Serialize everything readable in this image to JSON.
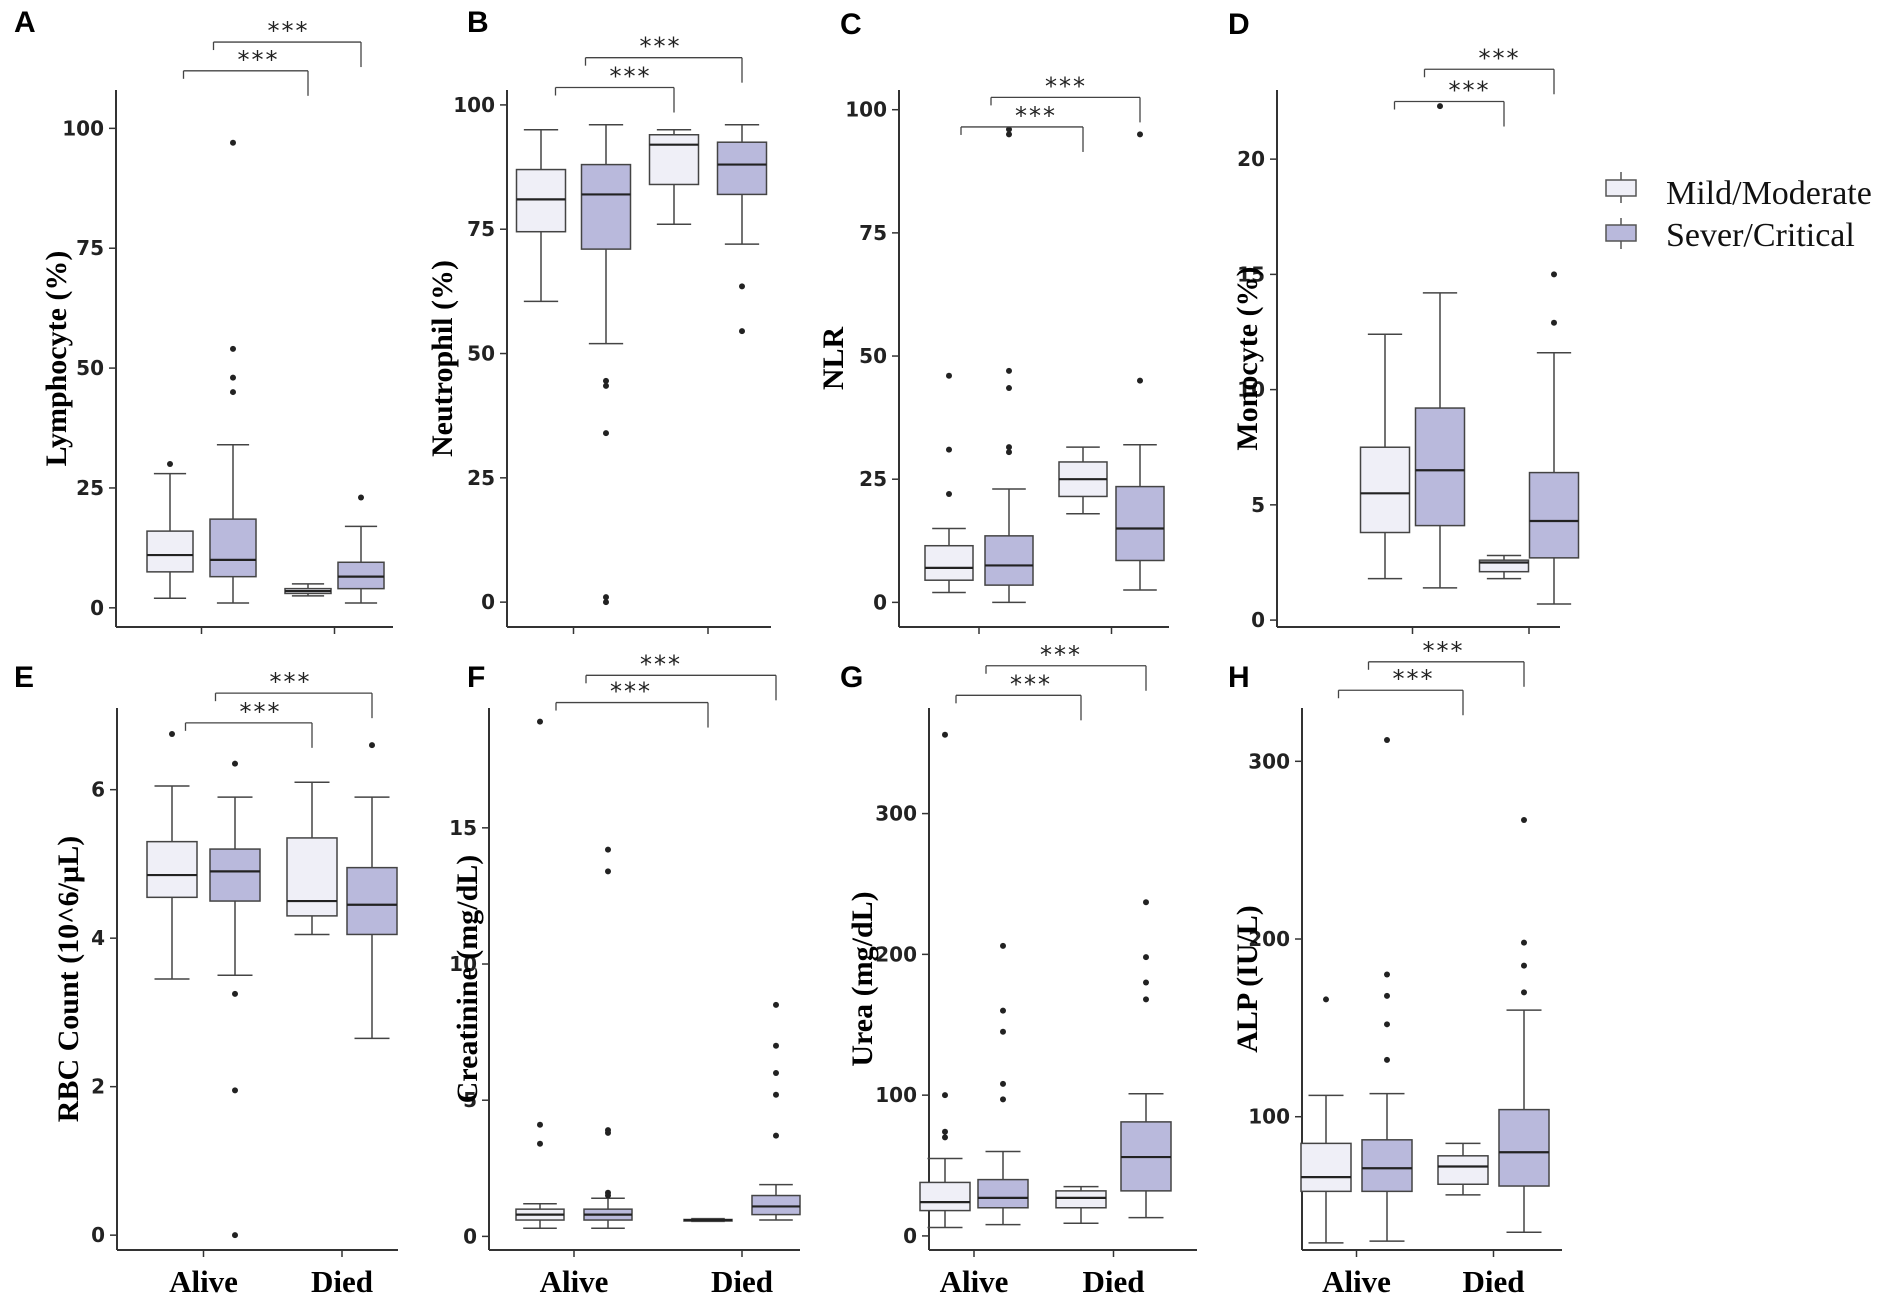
{
  "figure": {
    "x_categories": [
      "Alive",
      "Died"
    ],
    "x_label_panels": [
      "E",
      "F",
      "G",
      "H"
    ],
    "legend": {
      "entries": [
        {
          "label": "Mild/Moderate",
          "color": "#efeff7"
        },
        {
          "label": "Sever/Critical",
          "color": "#b9b9dc"
        }
      ]
    }
  },
  "chart_data": [
    {
      "panel": "A",
      "type": "box",
      "ylabel": "Lymphocyte (%)",
      "ylim": [
        -4,
        108
      ],
      "yticks": [
        0,
        25,
        50,
        75,
        100
      ],
      "groups": [
        {
          "category": "Alive",
          "series": "Mild/Moderate",
          "min": 2,
          "q1": 7.5,
          "median": 11,
          "q3": 16,
          "max": 28,
          "outliers": [
            30
          ]
        },
        {
          "category": "Alive",
          "series": "Sever/Critical",
          "min": 1,
          "q1": 6.5,
          "median": 10,
          "q3": 18.5,
          "max": 34,
          "outliers": [
            45,
            48,
            54,
            97
          ]
        },
        {
          "category": "Died",
          "series": "Mild/Moderate",
          "min": 2.5,
          "q1": 3,
          "median": 3.5,
          "q3": 4,
          "max": 5,
          "outliers": []
        },
        {
          "category": "Died",
          "series": "Sever/Critical",
          "min": 1,
          "q1": 4,
          "median": 6.5,
          "q3": 9.5,
          "max": 17,
          "outliers": [
            23
          ]
        }
      ],
      "significance": [
        {
          "from": 0,
          "to": 2,
          "level": 112,
          "label": "***"
        },
        {
          "from": 0,
          "to": 3,
          "level": 118,
          "label": "***"
        }
      ]
    },
    {
      "panel": "B",
      "type": "box",
      "ylabel": "Neutrophil (%)",
      "ylim": [
        -5,
        103
      ],
      "yticks": [
        0,
        25,
        50,
        75,
        100
      ],
      "groups": [
        {
          "category": "Alive",
          "series": "Mild/Moderate",
          "min": 60.5,
          "q1": 74.5,
          "median": 81,
          "q3": 87,
          "max": 95,
          "outliers": []
        },
        {
          "category": "Alive",
          "series": "Sever/Critical",
          "min": 52,
          "q1": 71,
          "median": 82,
          "q3": 88,
          "max": 96,
          "outliers": [
            0,
            1,
            34,
            43.5,
            44.5
          ]
        },
        {
          "category": "Died",
          "series": "Mild/Moderate",
          "min": 76,
          "q1": 84,
          "median": 92,
          "q3": 94,
          "max": 95,
          "outliers": []
        },
        {
          "category": "Died",
          "series": "Sever/Critical",
          "min": 72,
          "q1": 82,
          "median": 88,
          "q3": 92.5,
          "max": 96,
          "outliers": [
            54.5,
            63.5
          ]
        }
      ],
      "significance": [
        {
          "from": 0,
          "to": 2,
          "level": 103.5,
          "label": "***"
        },
        {
          "from": 0,
          "to": 3,
          "level": 109.5,
          "label": "***"
        }
      ]
    },
    {
      "panel": "C",
      "type": "box",
      "ylabel": "NLR",
      "ylim": [
        -5,
        104
      ],
      "yticks": [
        0,
        25,
        50,
        75,
        100
      ],
      "groups": [
        {
          "category": "Alive",
          "series": "Mild/Moderate",
          "min": 2,
          "q1": 4.5,
          "median": 7,
          "q3": 11.5,
          "max": 15,
          "outliers": [
            22,
            31,
            46
          ]
        },
        {
          "category": "Alive",
          "series": "Sever/Critical",
          "min": 0,
          "q1": 3.5,
          "median": 7.5,
          "q3": 13.5,
          "max": 23,
          "outliers": [
            30.5,
            31.5,
            43.5,
            47,
            95,
            96
          ]
        },
        {
          "category": "Died",
          "series": "Mild/Moderate",
          "min": 18,
          "q1": 21.5,
          "median": 25,
          "q3": 28.5,
          "max": 31.5,
          "outliers": []
        },
        {
          "category": "Died",
          "series": "Sever/Critical",
          "min": 2.5,
          "q1": 8.5,
          "median": 15,
          "q3": 23.5,
          "max": 32,
          "outliers": [
            45,
            95
          ]
        }
      ],
      "significance": [
        {
          "from": 0,
          "to": 2,
          "level": 96.5,
          "label": "***"
        },
        {
          "from": 0,
          "to": 3,
          "level": 102.5,
          "label": "***"
        }
      ]
    },
    {
      "panel": "D",
      "type": "box",
      "ylabel": "Monocyte (%)",
      "ylim": [
        -0.3,
        23
      ],
      "yticks": [
        0,
        5,
        10,
        15,
        20
      ],
      "groups": [
        {
          "category": "Alive",
          "series": "Mild/Moderate",
          "min": 1.8,
          "q1": 3.8,
          "median": 5.5,
          "q3": 7.5,
          "max": 12.4,
          "outliers": []
        },
        {
          "category": "Alive",
          "series": "Sever/Critical",
          "min": 1.4,
          "q1": 4.1,
          "median": 6.5,
          "q3": 9.2,
          "max": 14.2,
          "outliers": [
            22.3
          ]
        },
        {
          "category": "Died",
          "series": "Mild/Moderate",
          "min": 1.8,
          "q1": 2.1,
          "median": 2.5,
          "q3": 2.6,
          "max": 2.8,
          "outliers": []
        },
        {
          "category": "Died",
          "series": "Sever/Critical",
          "min": 0.7,
          "q1": 2.7,
          "median": 4.3,
          "q3": 6.4,
          "max": 11.6,
          "outliers": [
            12.9,
            15
          ]
        }
      ],
      "significance": [
        {
          "from": 0,
          "to": 2,
          "level": 22.5,
          "label": "***"
        },
        {
          "from": 0,
          "to": 3,
          "level": 23.9,
          "label": "***"
        }
      ]
    },
    {
      "panel": "E",
      "type": "box",
      "ylabel": "RBC Count (10^6/µL)",
      "ylim": [
        -0.2,
        7.1
      ],
      "yticks": [
        0,
        2,
        4,
        6
      ],
      "groups": [
        {
          "category": "Alive",
          "series": "Mild/Moderate",
          "min": 3.45,
          "q1": 4.55,
          "median": 4.85,
          "q3": 5.3,
          "max": 6.05,
          "outliers": [
            6.75
          ]
        },
        {
          "category": "Alive",
          "series": "Sever/Critical",
          "min": 3.5,
          "q1": 4.5,
          "median": 4.9,
          "q3": 5.2,
          "max": 5.9,
          "outliers": [
            0,
            1.95,
            3.25,
            6.35
          ]
        },
        {
          "category": "Died",
          "series": "Mild/Moderate",
          "min": 4.05,
          "q1": 4.3,
          "median": 4.5,
          "q3": 5.35,
          "max": 6.1,
          "outliers": []
        },
        {
          "category": "Died",
          "series": "Sever/Critical",
          "min": 2.65,
          "q1": 4.05,
          "median": 4.45,
          "q3": 4.95,
          "max": 5.9,
          "outliers": [
            6.6
          ]
        }
      ],
      "significance": [
        {
          "from": 0,
          "to": 2,
          "level": 6.9,
          "label": "***"
        },
        {
          "from": 0,
          "to": 3,
          "level": 7.3,
          "label": "***"
        }
      ]
    },
    {
      "panel": "F",
      "type": "box",
      "ylabel": "Creatinine (mg/dL)",
      "ylim": [
        -0.5,
        19.4
      ],
      "yticks": [
        0,
        5,
        10,
        15
      ],
      "groups": [
        {
          "category": "Alive",
          "series": "Mild/Moderate",
          "min": 0.3,
          "q1": 0.6,
          "median": 0.8,
          "q3": 1.0,
          "max": 1.2,
          "outliers": [
            3.4,
            4.1,
            18.9
          ]
        },
        {
          "category": "Alive",
          "series": "Sever/Critical",
          "min": 0.3,
          "q1": 0.6,
          "median": 0.8,
          "q3": 1.0,
          "max": 1.4,
          "outliers": [
            1.5,
            1.6,
            3.8,
            3.9,
            13.4,
            14.2
          ]
        },
        {
          "category": "Died",
          "series": "Mild/Moderate",
          "min": 0.55,
          "q1": 0.57,
          "median": 0.6,
          "q3": 0.62,
          "max": 0.65,
          "outliers": []
        },
        {
          "category": "Died",
          "series": "Sever/Critical",
          "min": 0.6,
          "q1": 0.8,
          "median": 1.1,
          "q3": 1.5,
          "max": 1.9,
          "outliers": [
            3.7,
            5.2,
            6.0,
            7.0,
            8.5
          ]
        }
      ],
      "significance": [
        {
          "from": 0,
          "to": 2,
          "level": 19.6,
          "label": "***"
        },
        {
          "from": 0,
          "to": 3,
          "level": 20.6,
          "label": "***"
        }
      ]
    },
    {
      "panel": "G",
      "type": "box",
      "ylabel": "Urea (mg/dL)",
      "ylim": [
        -10,
        375
      ],
      "yticks": [
        0,
        100,
        200,
        300
      ],
      "groups": [
        {
          "category": "Alive",
          "series": "Mild/Moderate",
          "min": 6,
          "q1": 18,
          "median": 24,
          "q3": 38,
          "max": 55,
          "outliers": [
            70,
            74,
            100,
            356
          ]
        },
        {
          "category": "Alive",
          "series": "Sever/Critical",
          "min": 8,
          "q1": 20,
          "median": 27,
          "q3": 40,
          "max": 60,
          "outliers": [
            97,
            108,
            145,
            160,
            206
          ]
        },
        {
          "category": "Died",
          "series": "Mild/Moderate",
          "min": 9,
          "q1": 20,
          "median": 27,
          "q3": 32,
          "max": 35,
          "outliers": []
        },
        {
          "category": "Died",
          "series": "Sever/Critical",
          "min": 13,
          "q1": 32,
          "median": 56,
          "q3": 81,
          "max": 101,
          "outliers": [
            168,
            180,
            198,
            237
          ]
        }
      ],
      "significance": [
        {
          "from": 0,
          "to": 2,
          "level": 384,
          "label": "***"
        },
        {
          "from": 0,
          "to": 3,
          "level": 405,
          "label": "***"
        }
      ]
    },
    {
      "panel": "H",
      "type": "box",
      "ylabel": "ALP (IU/L)",
      "ylim": [
        25,
        330
      ],
      "yticks": [
        100,
        200,
        300
      ],
      "groups": [
        {
          "category": "Alive",
          "series": "Mild/Moderate",
          "min": 29,
          "q1": 58,
          "median": 66,
          "q3": 85,
          "max": 112,
          "outliers": [
            166
          ]
        },
        {
          "category": "Alive",
          "series": "Sever/Critical",
          "min": 30,
          "q1": 58,
          "median": 71,
          "q3": 87,
          "max": 113,
          "outliers": [
            132,
            152,
            168,
            180,
            312
          ]
        },
        {
          "category": "Died",
          "series": "Mild/Moderate",
          "min": 56,
          "q1": 62,
          "median": 72,
          "q3": 78,
          "max": 85,
          "outliers": []
        },
        {
          "category": "Died",
          "series": "Sever/Critical",
          "min": 35,
          "q1": 61,
          "median": 80,
          "q3": 104,
          "max": 160,
          "outliers": [
            170,
            185,
            198,
            267
          ]
        }
      ],
      "significance": [
        {
          "from": 0,
          "to": 2,
          "level": 340,
          "label": "***"
        },
        {
          "from": 0,
          "to": 3,
          "level": 356,
          "label": "***"
        }
      ]
    }
  ]
}
